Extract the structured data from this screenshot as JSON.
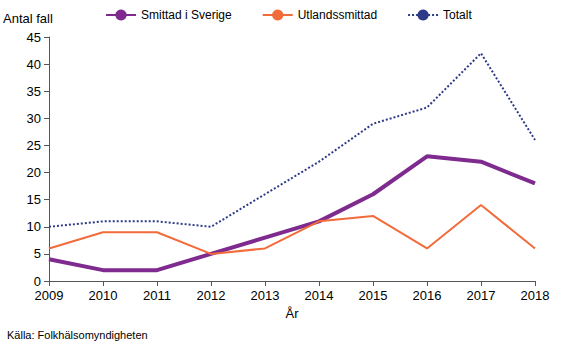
{
  "chart_data": {
    "type": "line",
    "y_label": "Antal fall",
    "x_label": "År",
    "source": "Källa: Folkhälsomyndigheten",
    "categories": [
      "2009",
      "2010",
      "2011",
      "2012",
      "2013",
      "2014",
      "2015",
      "2016",
      "2017",
      "2018"
    ],
    "series": [
      {
        "name": "Smittad i Sverige",
        "color": "#7f2a8e",
        "line_style": "solid",
        "values": [
          4,
          2,
          2,
          5,
          8,
          11,
          16,
          23,
          22,
          18
        ]
      },
      {
        "name": "Utlandssmittad",
        "color": "#f26b3a",
        "line_style": "solid",
        "values": [
          6,
          9,
          9,
          5,
          6,
          11,
          12,
          6,
          14,
          6
        ]
      },
      {
        "name": "Totalt",
        "color": "#2e3a87",
        "line_style": "dotted",
        "values": [
          10,
          11,
          11,
          10,
          16,
          22,
          29,
          32,
          42,
          26
        ]
      }
    ],
    "ylim": [
      0,
      45
    ],
    "yticks": [
      0,
      5,
      10,
      15,
      20,
      25,
      30,
      35,
      40,
      45
    ],
    "grid": false,
    "legend": "top"
  }
}
